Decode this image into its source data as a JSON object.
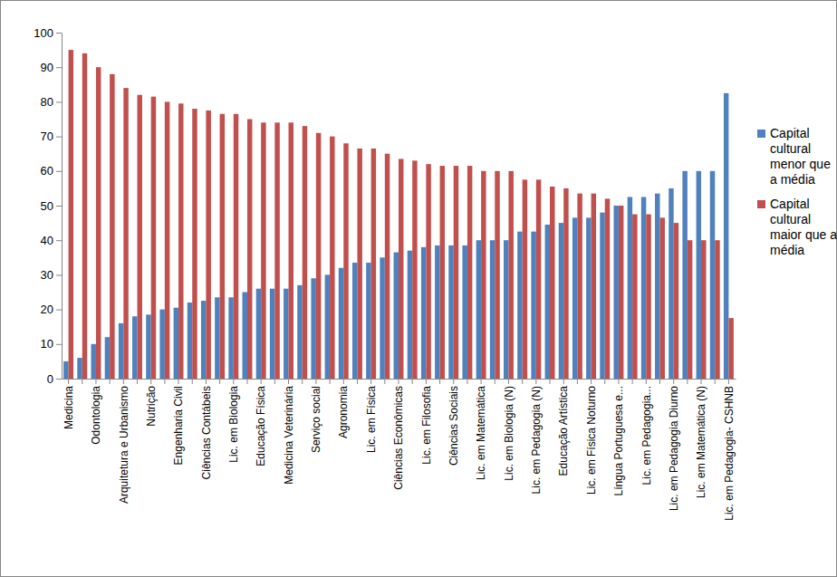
{
  "chart_data": {
    "type": "bar",
    "categories": [
      "Medicina",
      null,
      "Odontologia",
      null,
      "Arquitetura e Urbanismo",
      null,
      "Nutrição",
      null,
      "Engenharia Civil",
      null,
      "Ciências Contábeis",
      null,
      "Lic. em Biologia",
      null,
      "Educação Física",
      null,
      "Medicina Veterinária",
      null,
      "Serviço social",
      null,
      "Agronomia",
      null,
      "Lic. em Física",
      null,
      "Ciências Econômicas",
      null,
      "Lic. em Filosofia",
      null,
      "Ciências Sociais",
      null,
      "Lic. em Matemática",
      null,
      "Lic. em Biologia (N)",
      null,
      "Lic. em Pedagogia (N)",
      null,
      "Educação Artística",
      null,
      "Lic. em Física Noturno",
      null,
      "Língua Portuguesa e...",
      null,
      "Lic. em Pedagogia...",
      null,
      "Lic. em Pedagogia Diurno",
      null,
      "Lic. em Matemática (N)",
      null,
      "Lic. em Pedagogia- CSHNB"
    ],
    "series": [
      {
        "name": "Capital cultural menor que a média",
        "color": "#4f81bd",
        "values": [
          5,
          6,
          10,
          12,
          16,
          18,
          18.5,
          20,
          20.5,
          22,
          22.5,
          23.5,
          23.5,
          25,
          26,
          26,
          26,
          27,
          29,
          30,
          32,
          33.5,
          33.5,
          35,
          36.5,
          37,
          38,
          38.5,
          38.5,
          38.5,
          40,
          40,
          40,
          42.5,
          42.5,
          44.5,
          45,
          46.5,
          46.5,
          48,
          50,
          52.5,
          52.5,
          53.5,
          55,
          60,
          60,
          60,
          82.5
        ]
      },
      {
        "name": "Capital cultural maior que a média",
        "color": "#c0504d",
        "values": [
          95,
          94,
          90,
          88,
          84,
          82,
          81.5,
          80,
          79.5,
          78,
          77.5,
          76.5,
          76.5,
          75,
          74,
          74,
          74,
          73,
          71,
          70,
          68,
          66.5,
          66.5,
          65,
          63.5,
          63,
          62,
          61.5,
          61.5,
          61.5,
          60,
          60,
          60,
          57.5,
          57.5,
          55.5,
          55,
          53.5,
          53.5,
          52,
          50,
          47.5,
          47.5,
          46.5,
          45,
          40,
          40,
          40,
          17.5
        ]
      }
    ],
    "ylim": [
      0,
      100
    ],
    "yticks": [
      0,
      10,
      20,
      30,
      40,
      50,
      60,
      70,
      80,
      90,
      100
    ],
    "grid": false,
    "legend": "right"
  }
}
